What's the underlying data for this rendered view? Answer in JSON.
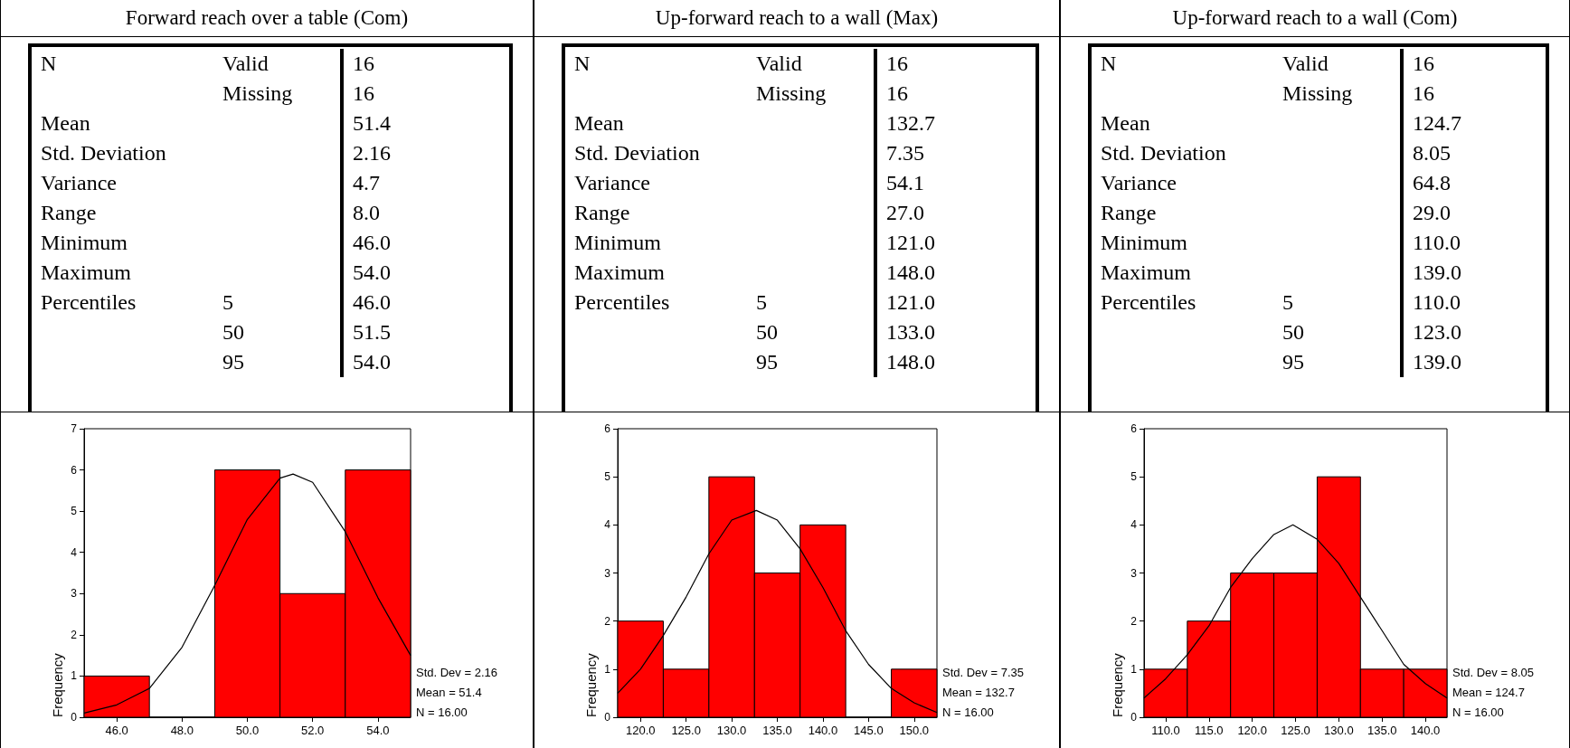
{
  "chart_data": [
    {
      "type": "other",
      "title": "Forward reach over a table (Com)",
      "cell_labels": [
        [
          "N",
          "Valid",
          "16"
        ],
        [
          null,
          "Missing",
          "16"
        ],
        [
          "Mean",
          null,
          "51.4"
        ],
        [
          "Std. Deviation",
          null,
          "2.16"
        ],
        [
          "Variance",
          null,
          "4.7"
        ],
        [
          "Range",
          null,
          "8.0"
        ],
        [
          "Minimum",
          null,
          "46.0"
        ],
        [
          "Maximum",
          null,
          "54.0"
        ],
        [
          "Percentiles",
          "5",
          "46.0"
        ],
        [
          null,
          "50",
          "51.5"
        ],
        [
          null,
          "95",
          "54.0"
        ]
      ]
    },
    {
      "type": "other",
      "title": "Up-forward reach to a wall (Max)",
      "cell_labels": [
        [
          "N",
          "Valid",
          "16"
        ],
        [
          null,
          "Missing",
          "16"
        ],
        [
          "Mean",
          null,
          "132.7"
        ],
        [
          "Std. Deviation",
          null,
          "7.35"
        ],
        [
          "Variance",
          null,
          "54.1"
        ],
        [
          "Range",
          null,
          "27.0"
        ],
        [
          "Minimum",
          null,
          "121.0"
        ],
        [
          "Maximum",
          null,
          "148.0"
        ],
        [
          "Percentiles",
          "5",
          "121.0"
        ],
        [
          null,
          "50",
          "133.0"
        ],
        [
          null,
          "95",
          "148.0"
        ]
      ]
    },
    {
      "type": "other",
      "title": "Up-forward reach to a wall (Com)",
      "cell_labels": [
        [
          "N",
          "Valid",
          "16"
        ],
        [
          null,
          "Missing",
          "16"
        ],
        [
          "Mean",
          null,
          "124.7"
        ],
        [
          "Std. Deviation",
          null,
          "8.05"
        ],
        [
          "Variance",
          null,
          "64.8"
        ],
        [
          "Range",
          null,
          "29.0"
        ],
        [
          "Minimum",
          null,
          "110.0"
        ],
        [
          "Maximum",
          null,
          "139.0"
        ],
        [
          "Percentiles",
          "5",
          "110.0"
        ],
        [
          null,
          "50",
          "123.0"
        ],
        [
          null,
          "95",
          "139.0"
        ]
      ]
    },
    {
      "type": "histogram",
      "ylabel": "Frequency",
      "annotations": [
        "Std. Dev = 2.16",
        "Mean = 51.4",
        "N = 16.00"
      ],
      "marker": "none",
      "xlim": [
        45,
        55
      ],
      "xticks": [
        {
          "value": 46,
          "label": "46.0"
        },
        {
          "value": 48,
          "label": "48.0"
        },
        {
          "value": 50,
          "label": "50.0"
        },
        {
          "value": 52,
          "label": "52.0"
        },
        {
          "value": 54,
          "label": "54.0"
        }
      ],
      "ylim": [
        0,
        7
      ],
      "yticks": [
        0,
        1,
        2,
        3,
        4,
        5,
        6,
        7
      ],
      "series": [
        {
          "type": "histogram",
          "color": "#ff0000",
          "bins": [
            45,
            47,
            49,
            51,
            53,
            55
          ],
          "values": [
            1,
            0,
            6,
            3,
            6
          ]
        },
        {
          "type": "line",
          "color": "#000000",
          "x": [
            45,
            46,
            47,
            48,
            49,
            50,
            51,
            51.4,
            52,
            53,
            54,
            55
          ],
          "values": [
            0.1,
            0.3,
            0.7,
            1.7,
            3.2,
            4.8,
            5.8,
            5.9,
            5.7,
            4.5,
            2.9,
            1.5
          ]
        }
      ]
    },
    {
      "type": "histogram",
      "ylabel": "Frequency",
      "annotations": [
        "Std. Dev = 7.35",
        "Mean = 132.7",
        "N = 16.00"
      ],
      "marker": "none",
      "xlim": [
        117.5,
        152.5
      ],
      "xticks": [
        {
          "value": 120,
          "label": "120.0"
        },
        {
          "value": 125,
          "label": "125.0"
        },
        {
          "value": 130,
          "label": "130.0"
        },
        {
          "value": 135,
          "label": "135.0"
        },
        {
          "value": 140,
          "label": "140.0"
        },
        {
          "value": 145,
          "label": "145.0"
        },
        {
          "value": 150,
          "label": "150.0"
        }
      ],
      "ylim": [
        0,
        6
      ],
      "yticks": [
        0,
        1,
        2,
        3,
        4,
        5,
        6
      ],
      "series": [
        {
          "type": "histogram",
          "color": "#ff0000",
          "bins": [
            117.5,
            122.5,
            127.5,
            132.5,
            137.5,
            142.5,
            147.5,
            152.5
          ],
          "values": [
            2,
            1,
            5,
            3,
            4,
            0,
            1
          ]
        },
        {
          "type": "line",
          "color": "#000000",
          "x": [
            117.5,
            120,
            122.5,
            125,
            127.5,
            130,
            132.7,
            135,
            137.5,
            140,
            142.5,
            145,
            147.5,
            150,
            152.5
          ],
          "values": [
            0.5,
            1.0,
            1.7,
            2.5,
            3.4,
            4.1,
            4.3,
            4.1,
            3.5,
            2.7,
            1.8,
            1.1,
            0.6,
            0.3,
            0.1
          ]
        }
      ]
    },
    {
      "type": "histogram",
      "ylabel": "Frequency",
      "annotations": [
        "Std. Dev = 8.05",
        "Mean = 124.7",
        "N = 16.00"
      ],
      "marker": "none",
      "xlim": [
        107.5,
        142.5
      ],
      "xticks": [
        {
          "value": 110,
          "label": "110.0"
        },
        {
          "value": 115,
          "label": "115.0"
        },
        {
          "value": 120,
          "label": "120.0"
        },
        {
          "value": 125,
          "label": "125.0"
        },
        {
          "value": 130,
          "label": "130.0"
        },
        {
          "value": 135,
          "label": "135.0"
        },
        {
          "value": 140,
          "label": "140.0"
        }
      ],
      "ylim": [
        0,
        6
      ],
      "yticks": [
        0,
        1,
        2,
        3,
        4,
        5,
        6
      ],
      "series": [
        {
          "type": "histogram",
          "color": "#ff0000",
          "bins": [
            107.5,
            112.5,
            117.5,
            122.5,
            127.5,
            132.5,
            137.5,
            142.5
          ],
          "values": [
            1,
            2,
            3,
            3,
            5,
            1,
            1
          ]
        },
        {
          "type": "line",
          "color": "#000000",
          "x": [
            107.5,
            110,
            112.5,
            115,
            117.5,
            120,
            122.5,
            124.7,
            127.5,
            130,
            132.5,
            135,
            137.5,
            140,
            142.5
          ],
          "values": [
            0.4,
            0.8,
            1.3,
            1.9,
            2.7,
            3.3,
            3.8,
            4.0,
            3.7,
            3.2,
            2.5,
            1.8,
            1.1,
            0.7,
            0.4
          ]
        }
      ]
    }
  ]
}
